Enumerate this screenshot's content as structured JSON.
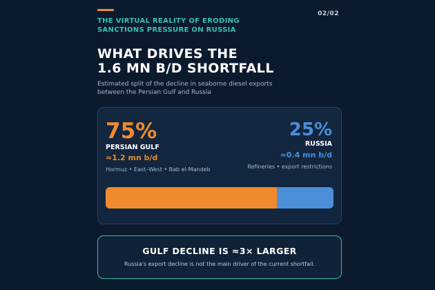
{
  "header": {
    "series_title_line1": "THE VIRTUAL REALITY OF ERODING",
    "series_title_line2": "SANCTIONS PRESSURE ON RUSSIA",
    "page_number": "02/02"
  },
  "headline": {
    "line1": "WHAT DRIVES THE",
    "line2": "1.6 MN B/D SHORTFALL"
  },
  "subtitle": {
    "line1": "Estimated split of the decline in seaborne diesel exports",
    "line2": "between the Persian Gulf and Russia"
  },
  "split": {
    "left": {
      "percent": "75%",
      "share": 0.75,
      "label": "PERSIAN GULF",
      "amount": "≈1.2 mn b/d",
      "note": "Hormuz • East–West • Bab el-Mandeb",
      "color": "#f08a2e"
    },
    "right": {
      "percent": "25%",
      "share": 0.25,
      "label": "RUSSIA",
      "amount": "≈0.4 mn b/d",
      "note": "Refineries • export restrictions",
      "color": "#4a8fd8"
    }
  },
  "callout": {
    "title": "GULF DECLINE IS ≈3× LARGER",
    "text": "Russia's export decline is not the main driver of the current shortfall."
  },
  "colors": {
    "background": "#0c1a2e",
    "accent_teal": "#36c0b4",
    "accent_orange": "#f08a2e"
  }
}
